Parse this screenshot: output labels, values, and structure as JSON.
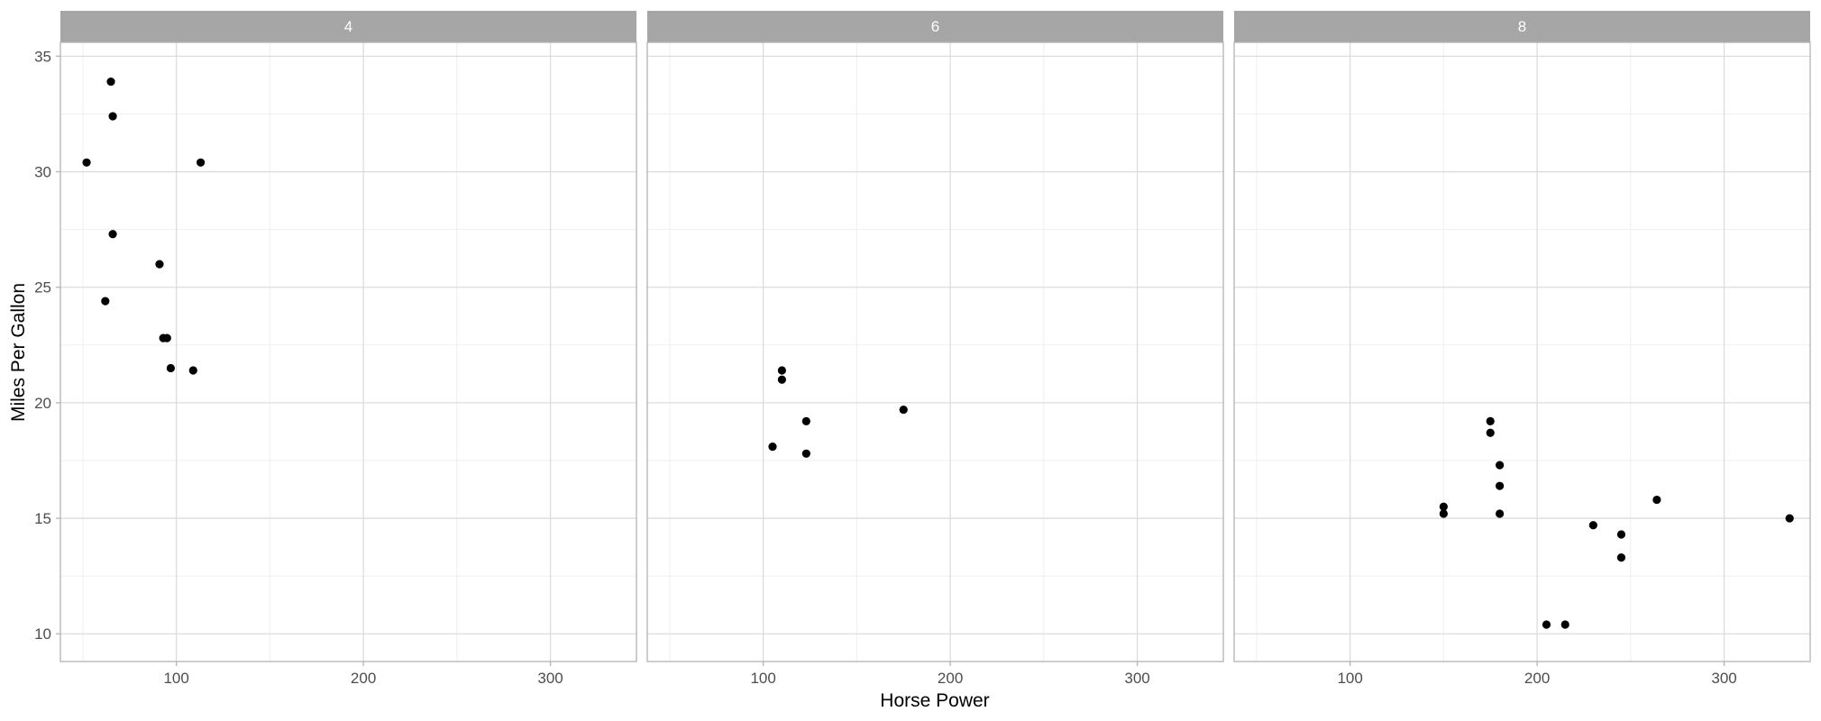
{
  "chart_data": {
    "type": "scatter",
    "xlabel": "Horse Power",
    "ylabel": "Miles Per Gallon",
    "xlim": [
      38,
      346
    ],
    "ylim": [
      8.8,
      35.6
    ],
    "x_ticks": [
      100,
      200,
      300
    ],
    "x_minor_ticks": [
      50,
      150,
      250
    ],
    "y_ticks": [
      10,
      15,
      20,
      25,
      30,
      35
    ],
    "y_minor_ticks": [
      12.5,
      17.5,
      22.5,
      27.5,
      32.5
    ],
    "grid": true,
    "facets": [
      {
        "label": "4",
        "points": [
          {
            "x": 52,
            "y": 30.4
          },
          {
            "x": 65,
            "y": 33.9
          },
          {
            "x": 66,
            "y": 32.4
          },
          {
            "x": 66,
            "y": 27.3
          },
          {
            "x": 113,
            "y": 30.4
          },
          {
            "x": 91,
            "y": 26.0
          },
          {
            "x": 62,
            "y": 24.4
          },
          {
            "x": 93,
            "y": 22.8
          },
          {
            "x": 95,
            "y": 22.8
          },
          {
            "x": 97,
            "y": 21.5
          },
          {
            "x": 109,
            "y": 21.4
          }
        ]
      },
      {
        "label": "6",
        "points": [
          {
            "x": 110,
            "y": 21.4
          },
          {
            "x": 110,
            "y": 21.0
          },
          {
            "x": 175,
            "y": 19.7
          },
          {
            "x": 123,
            "y": 19.2
          },
          {
            "x": 105,
            "y": 18.1
          },
          {
            "x": 123,
            "y": 17.8
          }
        ]
      },
      {
        "label": "8",
        "points": [
          {
            "x": 175,
            "y": 19.2
          },
          {
            "x": 175,
            "y": 18.7
          },
          {
            "x": 180,
            "y": 17.3
          },
          {
            "x": 180,
            "y": 16.4
          },
          {
            "x": 264,
            "y": 15.8
          },
          {
            "x": 150,
            "y": 15.5
          },
          {
            "x": 150,
            "y": 15.2
          },
          {
            "x": 180,
            "y": 15.2
          },
          {
            "x": 335,
            "y": 15.0
          },
          {
            "x": 230,
            "y": 14.7
          },
          {
            "x": 245,
            "y": 14.3
          },
          {
            "x": 245,
            "y": 13.3
          },
          {
            "x": 205,
            "y": 10.4
          },
          {
            "x": 215,
            "y": 10.4
          }
        ]
      }
    ]
  }
}
